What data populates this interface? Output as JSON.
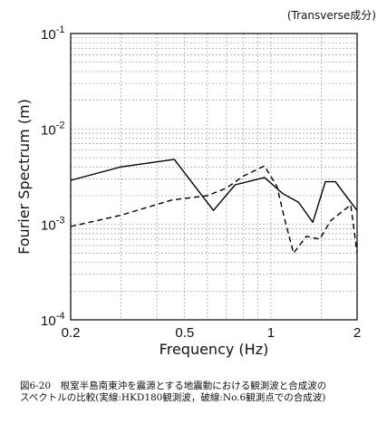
{
  "chart_data": {
    "type": "line",
    "component_label": "(Transverse成分)",
    "xlabel": "Frequency (Hz)",
    "ylabel": "Fourier Spectrum (m)",
    "x_scale": "log",
    "y_scale": "log",
    "xlim": [
      0.2,
      2
    ],
    "ylim": [
      0.0001,
      0.1
    ],
    "grid": true,
    "x_tick_labels": [
      "0.2",
      "0.5",
      "1",
      "2"
    ],
    "y_tick_labels": [
      {
        "base": "10",
        "exp": "-1"
      },
      {
        "base": "10",
        "exp": "-2"
      },
      {
        "base": "10",
        "exp": "-3"
      },
      {
        "base": "10",
        "exp": "-4"
      }
    ],
    "series": [
      {
        "style": "solid",
        "x": [
          0.2,
          0.3,
          0.46,
          0.63,
          0.75,
          0.95,
          1.1,
          1.25,
          1.4,
          1.55,
          1.68,
          1.85,
          2.0
        ],
        "y": [
          0.0029,
          0.004,
          0.0048,
          0.0014,
          0.0026,
          0.0031,
          0.0021,
          0.0017,
          0.00105,
          0.0028,
          0.0028,
          0.0019,
          0.0014
        ]
      },
      {
        "style": "dashed",
        "x": [
          0.2,
          0.3,
          0.45,
          0.6,
          0.7,
          0.8,
          0.95,
          1.05,
          1.12,
          1.2,
          1.33,
          1.48,
          1.62,
          1.9,
          2.0
        ],
        "y": [
          0.00095,
          0.00125,
          0.0018,
          0.002,
          0.0024,
          0.0032,
          0.0041,
          0.0025,
          0.0011,
          0.0005,
          0.00075,
          0.0007,
          0.0011,
          0.0016,
          0.0005
        ]
      }
    ]
  },
  "caption": {
    "line1": "図6-20　根室半島南東沖を震源とする地震動における観測波と合成波の",
    "line2": "スペクトルの比較(実線:HKD180観測波，破線:No.6観測点での合成波)"
  }
}
